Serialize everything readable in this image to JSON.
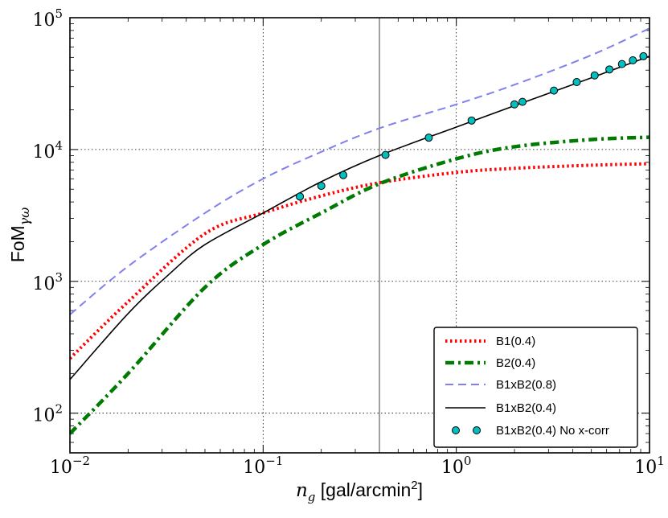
{
  "chart_data": {
    "type": "line",
    "xscale": "log",
    "yscale": "log",
    "xlim": [
      0.01,
      10
    ],
    "ylim": [
      50,
      100000
    ],
    "x_ticks": [
      {
        "value": 0.01,
        "base": "10",
        "exp": "−2"
      },
      {
        "value": 0.1,
        "base": "10",
        "exp": "−1"
      },
      {
        "value": 1,
        "base": "10",
        "exp": "0"
      },
      {
        "value": 10,
        "base": "10",
        "exp": "1"
      }
    ],
    "y_ticks": [
      {
        "value": 100,
        "base": "10",
        "exp": "2"
      },
      {
        "value": 1000,
        "base": "10",
        "exp": "3"
      },
      {
        "value": 10000,
        "base": "10",
        "exp": "4"
      },
      {
        "value": 100000,
        "base": "10",
        "exp": "5"
      }
    ],
    "xlabel": {
      "math": "n",
      "sub": "g",
      "text": " [gal/arcmin",
      "sup": "2",
      "end": "]"
    },
    "ylabel": {
      "text": "FoM",
      "sub": "γω"
    },
    "grid": true,
    "vline": {
      "x": 0.4,
      "color": "#a0a0a0"
    },
    "legend_position": "lower-right",
    "series": [
      {
        "name": "B1(0.4)",
        "style": "dotted",
        "color": "#ff0000",
        "x": [
          0.01,
          0.02,
          0.05,
          0.1,
          0.2,
          0.4,
          1,
          2,
          5,
          10
        ],
        "y": [
          260,
          700,
          2300,
          3300,
          4450,
          5600,
          6700,
          7200,
          7600,
          7800
        ]
      },
      {
        "name": "B2(0.4)",
        "style": "dashdot",
        "color": "#007a00",
        "x": [
          0.01,
          0.02,
          0.05,
          0.1,
          0.2,
          0.4,
          1,
          2,
          5,
          10
        ],
        "y": [
          70,
          200,
          900,
          1900,
          3300,
          5500,
          8500,
          10500,
          11900,
          12400
        ]
      },
      {
        "name": "B1xB2(0.8)",
        "style": "dashed",
        "color": "#8080ee",
        "x": [
          0.01,
          0.02,
          0.05,
          0.1,
          0.2,
          0.4,
          1,
          2,
          5,
          10
        ],
        "y": [
          560,
          1300,
          3300,
          6000,
          9600,
          14500,
          22000,
          31000,
          52000,
          83000
        ]
      },
      {
        "name": "B1xB2(0.4)",
        "style": "solid",
        "color": "#000000",
        "x": [
          0.01,
          0.02,
          0.033,
          0.05,
          0.1,
          0.2,
          0.4,
          1,
          2,
          5,
          10
        ],
        "y": [
          180,
          570,
          1150,
          1900,
          3300,
          5700,
          9000,
          14800,
          21500,
          35000,
          51000
        ]
      },
      {
        "name": "B1xB2(0.4) No x-corr",
        "style": "markers",
        "color": "#00bfbf",
        "x": [
          0.155,
          0.2,
          0.26,
          0.43,
          0.72,
          1.2,
          2.0,
          2.2,
          3.2,
          4.2,
          5.2,
          6.2,
          7.2,
          8.2,
          9.3
        ],
        "y": [
          4400,
          5300,
          6400,
          9100,
          12300,
          16600,
          22000,
          23000,
          28000,
          32500,
          36500,
          40500,
          44500,
          47500,
          51000
        ]
      }
    ]
  }
}
